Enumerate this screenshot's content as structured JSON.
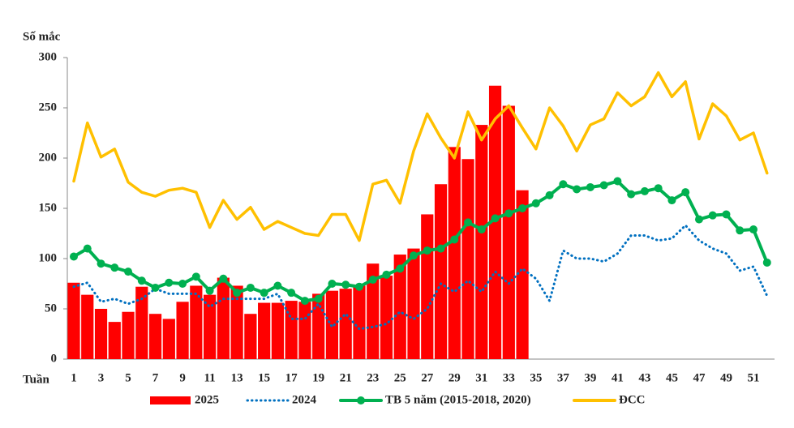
{
  "chart_data": {
    "type": "bar",
    "y_label": "Số mắc",
    "x_label": "Tuần",
    "categories": [
      1,
      null,
      3,
      null,
      5,
      null,
      7,
      null,
      9,
      null,
      11,
      null,
      13,
      null,
      15,
      null,
      17,
      null,
      19,
      null,
      21,
      null,
      23,
      null,
      25,
      null,
      27,
      null,
      29,
      null,
      31,
      null,
      33,
      null,
      35,
      null,
      37,
      null,
      39,
      null,
      41,
      null,
      43,
      null,
      45,
      null,
      47,
      null,
      49,
      null,
      51,
      null
    ],
    "ylim": [
      0,
      300
    ],
    "yticks": [
      0,
      50,
      100,
      150,
      200,
      250,
      300
    ],
    "legend": "bottom",
    "series": [
      {
        "name": "2025",
        "color": "#ff0000",
        "type": "bar",
        "values": [
          76,
          64,
          50,
          37,
          47,
          72,
          45,
          40,
          57,
          73,
          64,
          81,
          73,
          45,
          56,
          56,
          58,
          57,
          65,
          68,
          70,
          73,
          95,
          83,
          104,
          110,
          144,
          174,
          211,
          199,
          233,
          272,
          252,
          168,
          null,
          null,
          null,
          null,
          null,
          null,
          null,
          null,
          null,
          null,
          null,
          null,
          null,
          null,
          null,
          null,
          null,
          null
        ]
      },
      {
        "name": "2024",
        "color": "#0070c0",
        "type": "line",
        "dash": true,
        "values": [
          72,
          76,
          57,
          60,
          55,
          60,
          70,
          65,
          65,
          65,
          52,
          60,
          60,
          60,
          60,
          65,
          40,
          40,
          55,
          32,
          45,
          30,
          32,
          35,
          47,
          40,
          50,
          75,
          67,
          78,
          67,
          87,
          75,
          90,
          80,
          58,
          108,
          100,
          100,
          97,
          105,
          123,
          123,
          118,
          120,
          133,
          118,
          110,
          105,
          88,
          92,
          63
        ]
      },
      {
        "name": "TB 5 năm (2015-2018, 2020)",
        "color": "#00b050",
        "type": "line",
        "markers": true,
        "values": [
          102,
          110,
          95,
          91,
          87,
          78,
          71,
          76,
          75,
          82,
          68,
          80,
          66,
          71,
          66,
          73,
          66,
          58,
          60,
          75,
          74,
          72,
          79,
          84,
          90,
          103,
          108,
          110,
          119,
          136,
          129,
          140,
          145,
          150,
          155,
          163,
          174,
          169,
          171,
          173,
          177,
          164,
          167,
          170,
          158,
          166,
          139,
          143,
          144,
          128,
          129,
          96
        ]
      },
      {
        "name": "ĐCC",
        "color": "#ffc000",
        "type": "line",
        "values": [
          177,
          235,
          201,
          209,
          176,
          166,
          162,
          168,
          170,
          166,
          131,
          158,
          139,
          151,
          129,
          137,
          131,
          125,
          123,
          144,
          144,
          118,
          174,
          178,
          155,
          207,
          244,
          220,
          200,
          246,
          218,
          239,
          252,
          230,
          209,
          250,
          232,
          207,
          233,
          239,
          265,
          252,
          261,
          285,
          261,
          276,
          219,
          254,
          242,
          218,
          225,
          185
        ]
      }
    ]
  }
}
